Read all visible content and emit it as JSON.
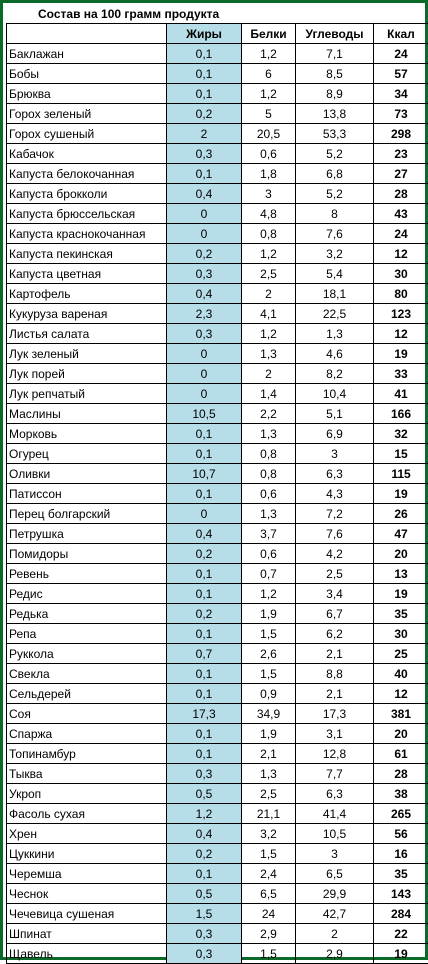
{
  "title": "Состав на 100 грамм продукта",
  "headers": [
    "",
    "Жиры",
    "Белки",
    "Углеводы",
    "Ккал"
  ],
  "rows": [
    [
      "Баклажан",
      "0,1",
      "1,2",
      "7,1",
      "24"
    ],
    [
      "Бобы",
      "0,1",
      "6",
      "8,5",
      "57"
    ],
    [
      "Брюква",
      "0,1",
      "1,2",
      "8,9",
      "34"
    ],
    [
      "Горох зеленый",
      "0,2",
      "5",
      "13,8",
      "73"
    ],
    [
      "Горох сушеный",
      "2",
      "20,5",
      "53,3",
      "298"
    ],
    [
      "Кабачок",
      "0,3",
      "0,6",
      "5,2",
      "23"
    ],
    [
      "Капуста белокочанная",
      "0,1",
      "1,8",
      "6,8",
      "27"
    ],
    [
      "Капуста брокколи",
      "0,4",
      "3",
      "5,2",
      "28"
    ],
    [
      "Капуста брюссельская",
      "0",
      "4,8",
      "8",
      "43"
    ],
    [
      "Капуста краснокочанная",
      "0",
      "0,8",
      "7,6",
      "24"
    ],
    [
      "Капуста пекинская",
      "0,2",
      "1,2",
      "3,2",
      "12"
    ],
    [
      "Капуста цветная",
      "0,3",
      "2,5",
      "5,4",
      "30"
    ],
    [
      "Картофель",
      "0,4",
      "2",
      "18,1",
      "80"
    ],
    [
      "Кукуруза вареная",
      "2,3",
      "4,1",
      "22,5",
      "123"
    ],
    [
      "Листья салата",
      "0,3",
      "1,2",
      "1,3",
      "12"
    ],
    [
      "Лук зеленый",
      "0",
      "1,3",
      "4,6",
      "19"
    ],
    [
      "Лук порей",
      "0",
      "2",
      "8,2",
      "33"
    ],
    [
      "Лук репчатый",
      "0",
      "1,4",
      "10,4",
      "41"
    ],
    [
      "Маслины",
      "10,5",
      "2,2",
      "5,1",
      "166"
    ],
    [
      "Морковь",
      "0,1",
      "1,3",
      "6,9",
      "32"
    ],
    [
      "Огурец",
      "0,1",
      "0,8",
      "3",
      "15"
    ],
    [
      "Оливки",
      "10,7",
      "0,8",
      "6,3",
      "115"
    ],
    [
      "Патиссон",
      "0,1",
      "0,6",
      "4,3",
      "19"
    ],
    [
      "Перец болгарский",
      "0",
      "1,3",
      "7,2",
      "26"
    ],
    [
      "Петрушка",
      "0,4",
      "3,7",
      "7,6",
      "47"
    ],
    [
      "Помидоры",
      "0,2",
      "0,6",
      "4,2",
      "20"
    ],
    [
      "Ревень",
      "0,1",
      "0,7",
      "2,5",
      "13"
    ],
    [
      "Редис",
      "0,1",
      "1,2",
      "3,4",
      "19"
    ],
    [
      "Редька",
      "0,2",
      "1,9",
      "6,7",
      "35"
    ],
    [
      "Репа",
      "0,1",
      "1,5",
      "6,2",
      "30"
    ],
    [
      "Руккола",
      "0,7",
      "2,6",
      "2,1",
      "25"
    ],
    [
      "Свекла",
      "0,1",
      "1,5",
      "8,8",
      "40"
    ],
    [
      "Сельдерей",
      "0,1",
      "0,9",
      "2,1",
      "12"
    ],
    [
      "Соя",
      "17,3",
      "34,9",
      "17,3",
      "381"
    ],
    [
      "Спаржа",
      "0,1",
      "1,9",
      "3,1",
      "20"
    ],
    [
      "Топинамбур",
      "0,1",
      "2,1",
      "12,8",
      "61"
    ],
    [
      "Тыква",
      "0,3",
      "1,3",
      "7,7",
      "28"
    ],
    [
      "Укроп",
      "0,5",
      "2,5",
      "6,3",
      "38"
    ],
    [
      "Фасоль сухая",
      "1,2",
      "21,1",
      "41,4",
      "265"
    ],
    [
      "Хрен",
      "0,4",
      "3,2",
      "10,5",
      "56"
    ],
    [
      "Цуккини",
      "0,2",
      "1,5",
      "3",
      "16"
    ],
    [
      "Черемша",
      "0,1",
      "2,4",
      "6,5",
      "35"
    ],
    [
      "Чеснок",
      "0,5",
      "6,5",
      "29,9",
      "143"
    ],
    [
      "Чечевица сушеная",
      "1,5",
      "24",
      "42,7",
      "284"
    ],
    [
      "Шпинат",
      "0,3",
      "2,9",
      "2",
      "22"
    ],
    [
      "Щавель",
      "0,3",
      "1,5",
      "2,9",
      "19"
    ]
  ]
}
